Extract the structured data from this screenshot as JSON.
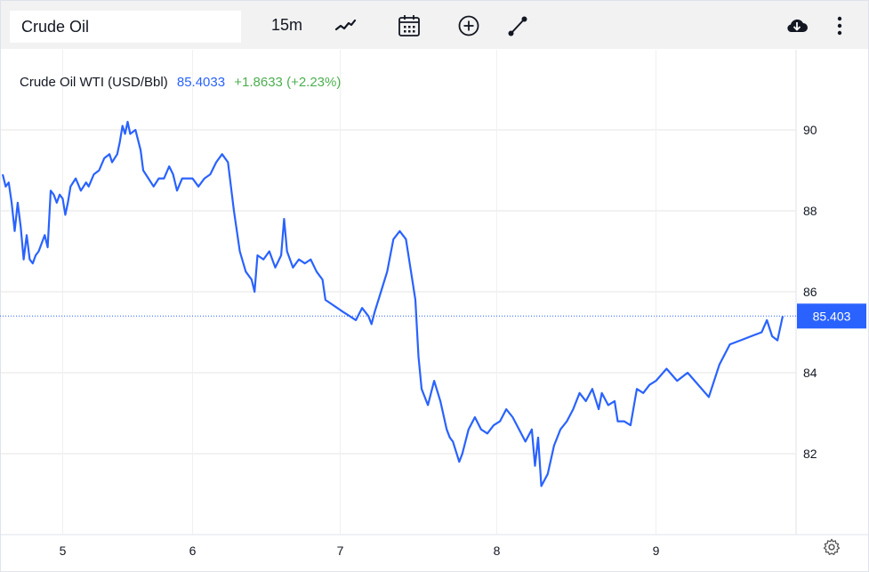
{
  "toolbar": {
    "symbol": "Crude Oil",
    "interval": "15m",
    "icons": [
      "line-chart-icon",
      "calendar-icon",
      "plus-circle-icon",
      "drawing-line-icon",
      "cloud-download-icon",
      "more-vert-icon"
    ]
  },
  "legend": {
    "name": "Crude Oil WTI (USD/Bbl)",
    "price": "85.4033",
    "change": "+1.8633 (+2.23%)",
    "price_color": "#2962ff",
    "change_color": "#4caf50"
  },
  "colors": {
    "line": "#2962ff",
    "grid": "#e6e6e6",
    "last_price_bg": "#2962ff"
  },
  "chart_data": {
    "type": "line",
    "title": "Crude Oil WTI (USD/Bbl)",
    "xlabel": "",
    "ylabel": "",
    "x_ticks": [
      "5",
      "6",
      "7",
      "8",
      "9"
    ],
    "y_ticks": [
      "90",
      "88",
      "86",
      "84",
      "82"
    ],
    "ylim": [
      80.0,
      92.0
    ],
    "grid": true,
    "last_price_label": "85.403",
    "series": [
      {
        "values": [
          [
            4.6,
            88.9
          ],
          [
            4.62,
            88.6
          ],
          [
            4.64,
            88.7
          ],
          [
            4.66,
            88.2
          ],
          [
            4.68,
            87.5
          ],
          [
            4.7,
            88.2
          ],
          [
            4.72,
            87.6
          ],
          [
            4.74,
            86.8
          ],
          [
            4.76,
            87.4
          ],
          [
            4.78,
            86.8
          ],
          [
            4.8,
            86.7
          ],
          [
            4.82,
            86.9
          ],
          [
            4.84,
            87.0
          ],
          [
            4.86,
            87.2
          ],
          [
            4.88,
            87.4
          ],
          [
            4.9,
            87.1
          ],
          [
            4.92,
            88.5
          ],
          [
            4.94,
            88.4
          ],
          [
            4.96,
            88.2
          ],
          [
            4.98,
            88.4
          ],
          [
            5.0,
            88.3
          ],
          [
            5.02,
            87.9
          ],
          [
            5.04,
            88.2
          ],
          [
            5.06,
            88.6
          ],
          [
            5.1,
            88.8
          ],
          [
            5.14,
            88.5
          ],
          [
            5.18,
            88.7
          ],
          [
            5.2,
            88.6
          ],
          [
            5.24,
            88.9
          ],
          [
            5.28,
            89.0
          ],
          [
            5.32,
            89.3
          ],
          [
            5.36,
            89.4
          ],
          [
            5.38,
            89.2
          ],
          [
            5.42,
            89.4
          ],
          [
            5.44,
            89.7
          ],
          [
            5.46,
            90.1
          ],
          [
            5.48,
            89.9
          ],
          [
            5.5,
            90.2
          ],
          [
            5.52,
            89.9
          ],
          [
            5.56,
            90.0
          ],
          [
            5.6,
            89.5
          ],
          [
            5.62,
            89.0
          ],
          [
            5.66,
            88.8
          ],
          [
            5.7,
            88.6
          ],
          [
            5.74,
            88.8
          ],
          [
            5.78,
            88.8
          ],
          [
            5.82,
            89.1
          ],
          [
            5.85,
            88.9
          ],
          [
            5.88,
            88.5
          ],
          [
            5.92,
            88.8
          ],
          [
            5.96,
            88.8
          ],
          [
            6.0,
            88.8
          ],
          [
            6.04,
            88.6
          ],
          [
            6.08,
            88.8
          ],
          [
            6.12,
            88.9
          ],
          [
            6.16,
            89.2
          ],
          [
            6.2,
            89.4
          ],
          [
            6.24,
            89.2
          ],
          [
            6.28,
            88.0
          ],
          [
            6.32,
            87.0
          ],
          [
            6.36,
            86.5
          ],
          [
            6.4,
            86.3
          ],
          [
            6.42,
            86.0
          ],
          [
            6.44,
            86.9
          ],
          [
            6.48,
            86.8
          ],
          [
            6.52,
            87.0
          ],
          [
            6.56,
            86.6
          ],
          [
            6.6,
            86.9
          ],
          [
            6.62,
            87.8
          ],
          [
            6.64,
            87.0
          ],
          [
            6.68,
            86.6
          ],
          [
            6.72,
            86.8
          ],
          [
            6.76,
            86.7
          ],
          [
            6.8,
            86.8
          ],
          [
            6.84,
            86.5
          ],
          [
            6.88,
            86.3
          ],
          [
            6.9,
            85.8
          ],
          [
            6.94,
            85.7
          ],
          [
            6.98,
            85.6
          ],
          [
            7.02,
            85.5
          ],
          [
            7.06,
            85.4
          ],
          [
            7.1,
            85.3
          ],
          [
            7.14,
            85.6
          ],
          [
            7.18,
            85.4
          ],
          [
            7.2,
            85.2
          ],
          [
            7.22,
            85.5
          ],
          [
            7.26,
            86.0
          ],
          [
            7.3,
            86.5
          ],
          [
            7.34,
            87.3
          ],
          [
            7.38,
            87.5
          ],
          [
            7.42,
            87.3
          ],
          [
            7.46,
            86.3
          ],
          [
            7.48,
            85.8
          ],
          [
            7.5,
            84.4
          ],
          [
            7.52,
            83.6
          ],
          [
            7.56,
            83.2
          ],
          [
            7.6,
            83.8
          ],
          [
            7.64,
            83.3
          ],
          [
            7.68,
            82.6
          ],
          [
            7.7,
            82.4
          ],
          [
            7.72,
            82.3
          ],
          [
            7.76,
            81.8
          ],
          [
            7.78,
            82.0
          ],
          [
            7.82,
            82.6
          ],
          [
            7.86,
            82.9
          ],
          [
            7.9,
            82.6
          ],
          [
            7.94,
            82.5
          ],
          [
            7.98,
            82.7
          ],
          [
            8.02,
            82.8
          ],
          [
            8.06,
            83.1
          ],
          [
            8.1,
            82.9
          ],
          [
            8.14,
            82.6
          ],
          [
            8.18,
            82.3
          ],
          [
            8.22,
            82.6
          ],
          [
            8.24,
            81.7
          ],
          [
            8.26,
            82.4
          ],
          [
            8.28,
            81.2
          ],
          [
            8.32,
            81.5
          ],
          [
            8.36,
            82.2
          ],
          [
            8.4,
            82.6
          ],
          [
            8.44,
            82.8
          ],
          [
            8.48,
            83.1
          ],
          [
            8.52,
            83.5
          ],
          [
            8.56,
            83.3
          ],
          [
            8.6,
            83.6
          ],
          [
            8.64,
            83.1
          ],
          [
            8.66,
            83.5
          ],
          [
            8.7,
            83.2
          ],
          [
            8.74,
            83.3
          ],
          [
            8.76,
            82.8
          ],
          [
            8.8,
            82.8
          ],
          [
            8.84,
            82.7
          ],
          [
            8.88,
            83.6
          ],
          [
            8.92,
            83.5
          ],
          [
            8.96,
            83.7
          ],
          [
            9.0,
            83.8
          ],
          [
            9.04,
            84.1
          ],
          [
            9.08,
            83.8
          ],
          [
            9.12,
            84.0
          ],
          [
            9.16,
            83.7
          ],
          [
            9.2,
            83.4
          ],
          [
            9.24,
            84.2
          ],
          [
            9.28,
            84.7
          ],
          [
            9.32,
            84.8
          ],
          [
            9.36,
            84.9
          ],
          [
            9.4,
            85.0
          ],
          [
            9.42,
            85.3
          ],
          [
            9.44,
            84.9
          ],
          [
            9.46,
            84.8
          ],
          [
            9.48,
            85.4
          ]
        ]
      }
    ]
  }
}
